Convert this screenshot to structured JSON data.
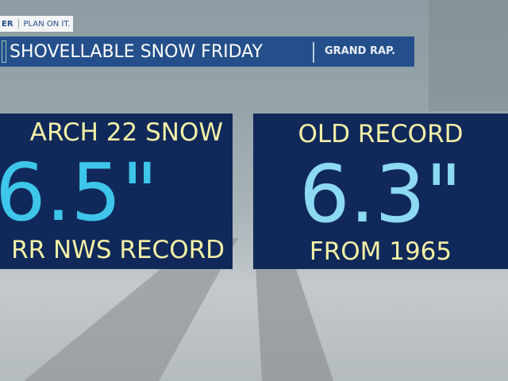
{
  "header": {
    "brand_fragment": "ER",
    "tagline": "PLAN ON IT.",
    "title": "SHOVELLABLE SNOW FRIDAY",
    "location": "GRAND RAP."
  },
  "left_card": {
    "line1": "ARCH 22 SNOW",
    "value": "6.5\"",
    "line3": "RR NWS RECORD"
  },
  "right_card": {
    "line1": "OLD RECORD",
    "value": "6.3\"",
    "line3": "FROM 1965"
  },
  "colors": {
    "banner": "#244f8a",
    "card": "#10295a",
    "label_text": "#f4f0a6",
    "left_value": "#3ec6ea",
    "right_value": "#8cd9f2"
  }
}
